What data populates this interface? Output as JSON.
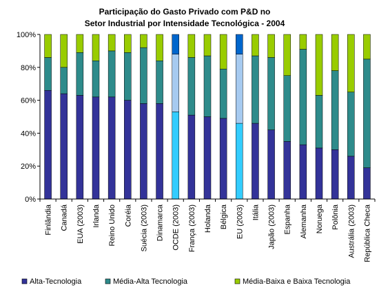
{
  "chart_data": {
    "type": "bar",
    "stacked": true,
    "normalized": true,
    "title_lines": [
      "Participação do Gasto Privado com P&D no",
      "Setor Industrial por Intensidade Tecnológica - 2004"
    ],
    "ylim": [
      0,
      100
    ],
    "yticks": [
      "0%",
      "20%",
      "40%",
      "60%",
      "80%",
      "100%"
    ],
    "grid": false,
    "legend_position": "bottom",
    "categories": [
      "Finlândia",
      "Canadá",
      "EUA (2003)",
      "Irlanda",
      "Reino Unido",
      "Coréia",
      "Suécia (2003)",
      "Dinamarca",
      "OCDE (2003)",
      "França (2003)",
      "Holanda",
      "Bélgica",
      "EU (2003)",
      "Itália",
      "Japão (2003)",
      "Espanha",
      "Alemanha",
      "Noruega",
      "Polônia",
      "Austrália (2003)",
      "República Checa"
    ],
    "highlighted_categories": [
      "OCDE (2003)",
      "EU (2003)"
    ],
    "series": [
      {
        "name": "Alta-Tecnologia",
        "color": "#333399",
        "highlight_color": "#33CCFF",
        "values": [
          66,
          64,
          63,
          62,
          62,
          60,
          58,
          58,
          53,
          51,
          50,
          49,
          46,
          46,
          42,
          35,
          33,
          31,
          30,
          26,
          19
        ]
      },
      {
        "name": "Média-Alta Tecnologia",
        "color": "#2E8B8B",
        "highlight_color": "#A6CAF0",
        "values": [
          20,
          16,
          26,
          22,
          28,
          29,
          34,
          26,
          35,
          35,
          37,
          30,
          42,
          41,
          44,
          40,
          58,
          32,
          48,
          39,
          66
        ]
      },
      {
        "name": "Média-Baixa e Baixa Tecnologia",
        "color": "#99CC00",
        "highlight_color": "#0066CC",
        "values": [
          14,
          20,
          11,
          16,
          10,
          11,
          8,
          16,
          12,
          14,
          13,
          21,
          12,
          13,
          14,
          25,
          9,
          37,
          22,
          35,
          15
        ]
      }
    ]
  }
}
